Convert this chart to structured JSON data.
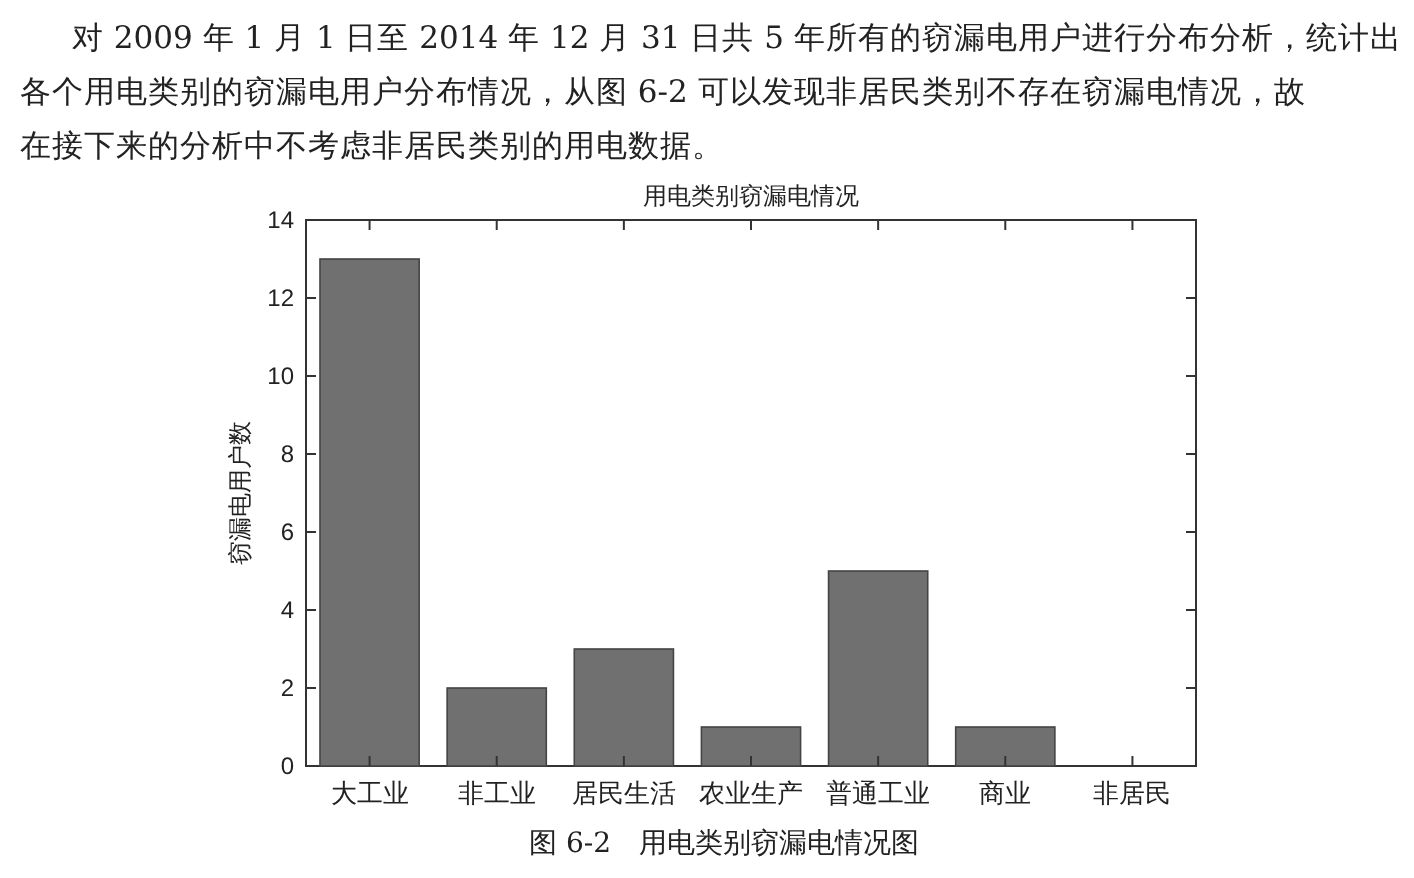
{
  "chart_data": {
    "type": "bar",
    "title": "用电类别窃漏电情况",
    "ylabel": "窃漏电用户数",
    "categories": [
      "大工业",
      "非工业",
      "居民生活",
      "农业生产",
      "普通工业",
      "商业",
      "非居民"
    ],
    "values": [
      13,
      2,
      3,
      1,
      5,
      1,
      0
    ],
    "color": "#707070",
    "ylim": [
      0,
      14
    ],
    "yticks": [
      0,
      2,
      4,
      6,
      8,
      10,
      12,
      14
    ],
    "annotations": [
      "对 2009 年 1 月 1 日至 2014 年 12 月 31 日共 5 年所有的窃漏电用户进行分布分析，统计出",
      "各个用电类别的窃漏电用户分布情况，从图 6-2 可以发现非居民类别不存在窃漏电情况，故",
      "在接下来的分析中不考虑非居民类别的用电数据。",
      "图 6-2　用电类别窃漏电情况图"
    ]
  }
}
